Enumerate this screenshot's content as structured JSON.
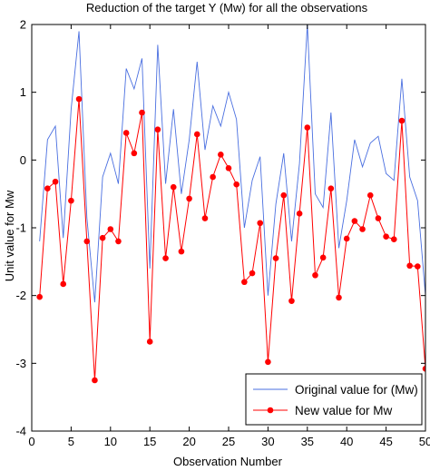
{
  "chart_data": {
    "type": "line",
    "title": "Reduction of the target Y (Mw) for all the observations",
    "xlabel": "Observation Number",
    "ylabel": "Unit value for Mw",
    "xlim": [
      0,
      50
    ],
    "ylim": [
      -4,
      2
    ],
    "xticks": [
      0,
      5,
      10,
      15,
      20,
      25,
      30,
      35,
      40,
      45,
      50
    ],
    "yticks": [
      -4,
      -3,
      -2,
      -1,
      0,
      1,
      2
    ],
    "grid": false,
    "legend_position": "bottom-right",
    "x": [
      1,
      2,
      3,
      4,
      5,
      6,
      7,
      8,
      9,
      10,
      11,
      12,
      13,
      14,
      15,
      16,
      17,
      18,
      19,
      20,
      21,
      22,
      23,
      24,
      25,
      26,
      27,
      28,
      29,
      30,
      31,
      32,
      33,
      34,
      35,
      36,
      37,
      38,
      39,
      40,
      41,
      42,
      43,
      44,
      45,
      46,
      47,
      48,
      49,
      50
    ],
    "series": [
      {
        "name": "Original value for (Mw)",
        "color": "#4a6fe0",
        "marker": "none",
        "values": [
          -1.2,
          0.3,
          0.5,
          -1.15,
          0.75,
          1.9,
          -0.85,
          -2.1,
          -0.25,
          0.1,
          -0.35,
          1.35,
          1.05,
          1.5,
          -1.6,
          1.7,
          -0.35,
          0.75,
          -0.5,
          0.3,
          1.45,
          0.15,
          0.8,
          0.5,
          1.0,
          0.6,
          -1.0,
          -0.3,
          0.05,
          -2.0,
          -0.65,
          0.1,
          -1.2,
          -0.05,
          2.0,
          -0.5,
          -0.7,
          0.7,
          -1.3,
          -0.6,
          0.3,
          -0.1,
          0.25,
          0.35,
          -0.2,
          -0.3,
          1.2,
          -0.25,
          -0.6,
          -2.0
        ]
      },
      {
        "name": "New value for Mw",
        "color": "#ff0000",
        "marker": "circle",
        "values": [
          -2.02,
          -0.42,
          -0.32,
          -1.83,
          -0.6,
          0.9,
          -1.2,
          -3.25,
          -1.15,
          -1.02,
          -1.2,
          0.4,
          0.1,
          0.7,
          -2.68,
          0.45,
          -1.45,
          -0.4,
          -1.35,
          -0.57,
          0.38,
          -0.86,
          -0.25,
          0.08,
          -0.12,
          -0.36,
          -1.8,
          -1.67,
          -0.93,
          -2.98,
          -1.45,
          -0.52,
          -2.08,
          -0.79,
          0.48,
          -1.7,
          -1.44,
          -0.42,
          -2.03,
          -1.16,
          -0.9,
          -1.02,
          -0.52,
          -0.86,
          -1.13,
          -1.17,
          0.58,
          -1.56,
          -1.57,
          -3.08
        ]
      }
    ]
  }
}
